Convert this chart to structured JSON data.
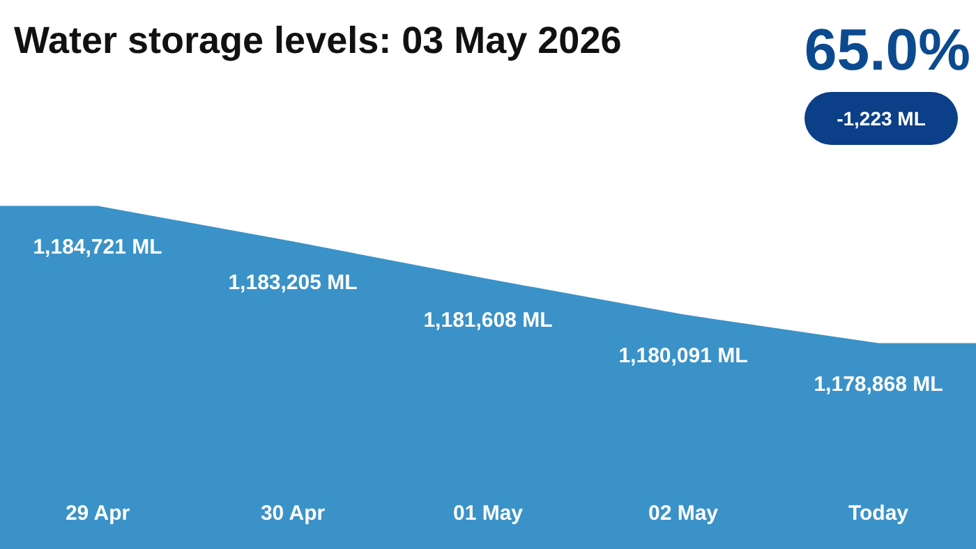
{
  "chart_data": {
    "type": "area",
    "title": "Water storage levels: 03 May 2026",
    "annotations": [
      "65.0%",
      "-1,223 ML"
    ],
    "categories": [
      "29 Apr",
      "30 Apr",
      "01 May",
      "02 May",
      "Today"
    ],
    "values": [
      1184721,
      1183205,
      1181608,
      1180091,
      1178868
    ],
    "value_labels": [
      "1,184,721 ML",
      "1,183,205 ML",
      "1,181,608 ML",
      "1,180,091 ML",
      "1,178,868 ML"
    ],
    "color": "#3a92c8"
  }
}
